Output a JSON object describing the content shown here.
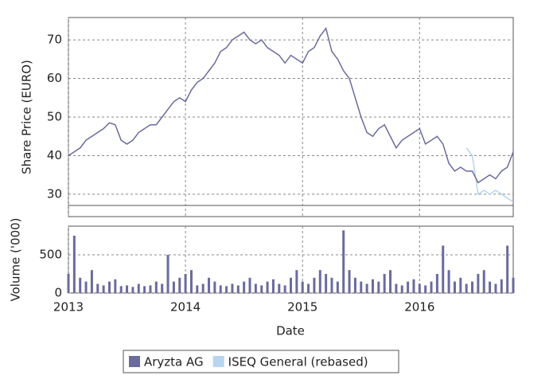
{
  "chart_data": [
    {
      "type": "line",
      "ylabel": "Share Price (EURO)",
      "x": [
        2013.0,
        2013.05,
        2013.1,
        2013.15,
        2013.2,
        2013.25,
        2013.3,
        2013.35,
        2013.4,
        2013.45,
        2013.5,
        2013.55,
        2013.6,
        2013.65,
        2013.7,
        2013.75,
        2013.8,
        2013.85,
        2013.9,
        2013.95,
        2014.0,
        2014.05,
        2014.1,
        2014.15,
        2014.2,
        2014.25,
        2014.3,
        2014.35,
        2014.4,
        2014.45,
        2014.5,
        2014.55,
        2014.6,
        2014.65,
        2014.7,
        2014.75,
        2014.8,
        2014.85,
        2014.9,
        2014.95,
        2015.0,
        2015.05,
        2015.1,
        2015.15,
        2015.2,
        2015.25,
        2015.3,
        2015.35,
        2015.4,
        2015.45,
        2015.5,
        2015.55,
        2015.6,
        2015.65,
        2015.7,
        2015.75,
        2015.8,
        2015.85,
        2015.9,
        2015.95,
        2016.0,
        2016.05,
        2016.1,
        2016.15,
        2016.2,
        2016.25,
        2016.3,
        2016.35,
        2016.4,
        2016.45,
        2016.5,
        2016.55,
        2016.6,
        2016.65,
        2016.7,
        2016.75,
        2016.8
      ],
      "series": [
        {
          "name": "Aryzta AG",
          "color": "#6b6b9e",
          "values": [
            40,
            41,
            42,
            44,
            45,
            46,
            47,
            48.5,
            48,
            44,
            43,
            44,
            46,
            47,
            48,
            48,
            50,
            52,
            54,
            55,
            54,
            57,
            59,
            60,
            62,
            64,
            67,
            68,
            70,
            71,
            72,
            70,
            69,
            70,
            68,
            67,
            66,
            64,
            66,
            65,
            64,
            67,
            68,
            71,
            73,
            67,
            65,
            62,
            60,
            55,
            50,
            46,
            45,
            47,
            48,
            45,
            42,
            44,
            45,
            46,
            47,
            43,
            44,
            45,
            43,
            38,
            36,
            37,
            36,
            36,
            33,
            34,
            35,
            34,
            36,
            37,
            41
          ]
        },
        {
          "name": "ISEQ General (rebased)",
          "color": "#b8d4ee",
          "values": [
            null,
            null,
            null,
            null,
            null,
            null,
            null,
            null,
            null,
            null,
            null,
            null,
            null,
            null,
            null,
            null,
            null,
            null,
            null,
            null,
            null,
            null,
            null,
            null,
            null,
            null,
            null,
            null,
            null,
            null,
            null,
            null,
            null,
            null,
            null,
            null,
            null,
            null,
            null,
            null,
            null,
            null,
            null,
            null,
            null,
            null,
            null,
            null,
            null,
            null,
            null,
            null,
            null,
            null,
            null,
            null,
            null,
            null,
            null,
            null,
            null,
            null,
            null,
            null,
            null,
            null,
            null,
            null,
            42,
            40,
            30,
            31,
            30,
            31,
            30,
            29,
            28
          ]
        }
      ],
      "xlim": [
        2013,
        2016.8
      ],
      "ylim": [
        24.2,
        75.8
      ],
      "yticks": [
        30,
        40,
        50,
        60,
        70
      ],
      "grid": true
    },
    {
      "type": "bar",
      "ylabel": "Volume ('000)",
      "xlabel": "Date",
      "color": "#6b6b9e",
      "x": [
        2013.0,
        2013.05,
        2013.1,
        2013.15,
        2013.2,
        2013.25,
        2013.3,
        2013.35,
        2013.4,
        2013.45,
        2013.5,
        2013.55,
        2013.6,
        2013.65,
        2013.7,
        2013.75,
        2013.8,
        2013.85,
        2013.9,
        2013.95,
        2014.0,
        2014.05,
        2014.1,
        2014.15,
        2014.2,
        2014.25,
        2014.3,
        2014.35,
        2014.4,
        2014.45,
        2014.5,
        2014.55,
        2014.6,
        2014.65,
        2014.7,
        2014.75,
        2014.8,
        2014.85,
        2014.9,
        2014.95,
        2015.0,
        2015.05,
        2015.1,
        2015.15,
        2015.2,
        2015.25,
        2015.3,
        2015.35,
        2015.4,
        2015.45,
        2015.5,
        2015.55,
        2015.6,
        2015.65,
        2015.7,
        2015.75,
        2015.8,
        2015.85,
        2015.9,
        2015.95,
        2016.0,
        2016.05,
        2016.1,
        2016.15,
        2016.2,
        2016.25,
        2016.3,
        2016.35,
        2016.4,
        2016.45,
        2016.5,
        2016.55,
        2016.6,
        2016.65,
        2016.7,
        2016.75,
        2016.8
      ],
      "values": [
        250,
        750,
        200,
        150,
        300,
        120,
        100,
        150,
        180,
        90,
        100,
        80,
        120,
        90,
        100,
        150,
        120,
        500,
        150,
        200,
        250,
        300,
        100,
        120,
        200,
        150,
        100,
        90,
        120,
        100,
        150,
        200,
        120,
        100,
        150,
        180,
        120,
        100,
        200,
        300,
        150,
        120,
        200,
        300,
        250,
        200,
        150,
        820,
        300,
        200,
        150,
        120,
        180,
        150,
        250,
        300,
        120,
        100,
        150,
        180,
        120,
        100,
        150,
        250,
        620,
        300,
        150,
        200,
        120,
        150,
        250,
        300,
        150,
        120,
        180,
        620,
        200
      ],
      "xlim": [
        2013,
        2016.8
      ],
      "ylim": [
        0,
        875
      ],
      "xticks": [
        2013,
        2014,
        2015,
        2016
      ],
      "yticks": [
        0,
        500
      ],
      "grid": true
    }
  ]
}
